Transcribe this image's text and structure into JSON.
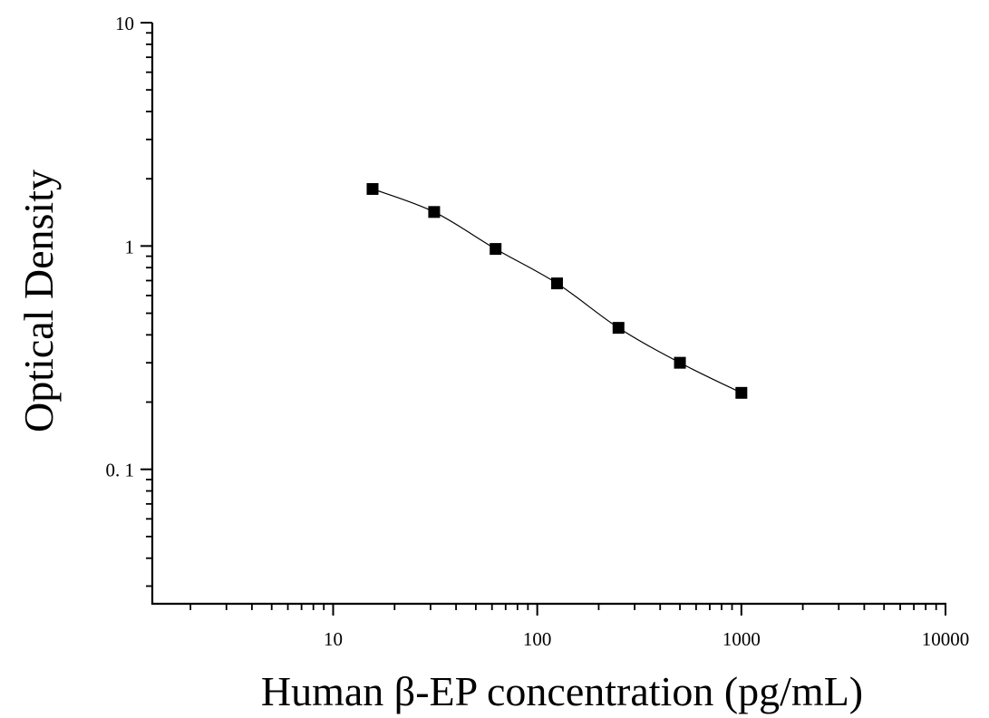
{
  "chart_data": {
    "type": "scatter",
    "title": "",
    "xlabel": "Human β-EP concentration (pg/mL)",
    "ylabel": "Optical Density",
    "xscale": "log",
    "yscale": "log",
    "xlim": [
      1.3,
      10000
    ],
    "ylim": [
      0.025,
      10
    ],
    "grid": false,
    "legend": "none",
    "x_ticks": [
      {
        "value": 10,
        "label": "10"
      },
      {
        "value": 100,
        "label": "100"
      },
      {
        "value": 1000,
        "label": "1000"
      },
      {
        "value": 10000,
        "label": "10000"
      }
    ],
    "y_ticks": [
      {
        "value": 0.1,
        "label": "0. 1"
      },
      {
        "value": 1,
        "label": "1"
      },
      {
        "value": 10,
        "label": "10"
      }
    ],
    "series": [
      {
        "marker": "square",
        "color": "#000000",
        "fit_curve": true,
        "x": [
          15.6,
          31.25,
          62.5,
          125,
          250,
          500,
          1000
        ],
        "y": [
          1.8,
          1.42,
          0.97,
          0.68,
          0.43,
          0.3,
          0.22
        ]
      }
    ]
  }
}
